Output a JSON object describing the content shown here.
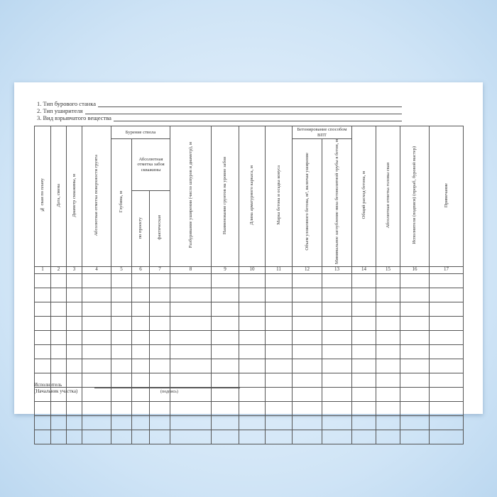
{
  "fields": [
    "1. Тип бурового станка",
    "2. Тип уширителя",
    "3. Вид взрывчатого вещества"
  ],
  "groups": {
    "drilling": "Бурение ствола",
    "abs_mark": "Абсолютная отметка забоя скважины",
    "concreting": "Бетонирование способом ВПТ"
  },
  "columns": [
    "№ сваи по плану",
    "Дата, смена",
    "Диаметр скважины, м",
    "Абсолютная отметка поверхности грунта",
    "Глубина, м",
    "по проекту",
    "фактическая",
    "Разбуривание уширения (число шпуров и диаметр), м",
    "Наименование грунтов на уровне забоя",
    "Длина арматурного каркаса, м",
    "Марка бетона и осадка конуса",
    "Объем уложенного бетона, м³, включая уширение",
    "Минимальное заглубление низа бетонолитной трубы в бетон, м",
    "Общий расход бетона, м",
    "Абсолютная отметка головы сваи",
    "Исполнители (подписи) (прораб, буровой мастер)",
    "Примечание"
  ],
  "numbers": [
    "1",
    "2",
    "3",
    "4",
    "5",
    "6",
    "7",
    "8",
    "9",
    "10",
    "11",
    "12",
    "13",
    "14",
    "15",
    "16",
    "17"
  ],
  "footer": {
    "executor": "Исполнитель",
    "position": "(Начальник участка)",
    "signature": "(подпись)"
  }
}
